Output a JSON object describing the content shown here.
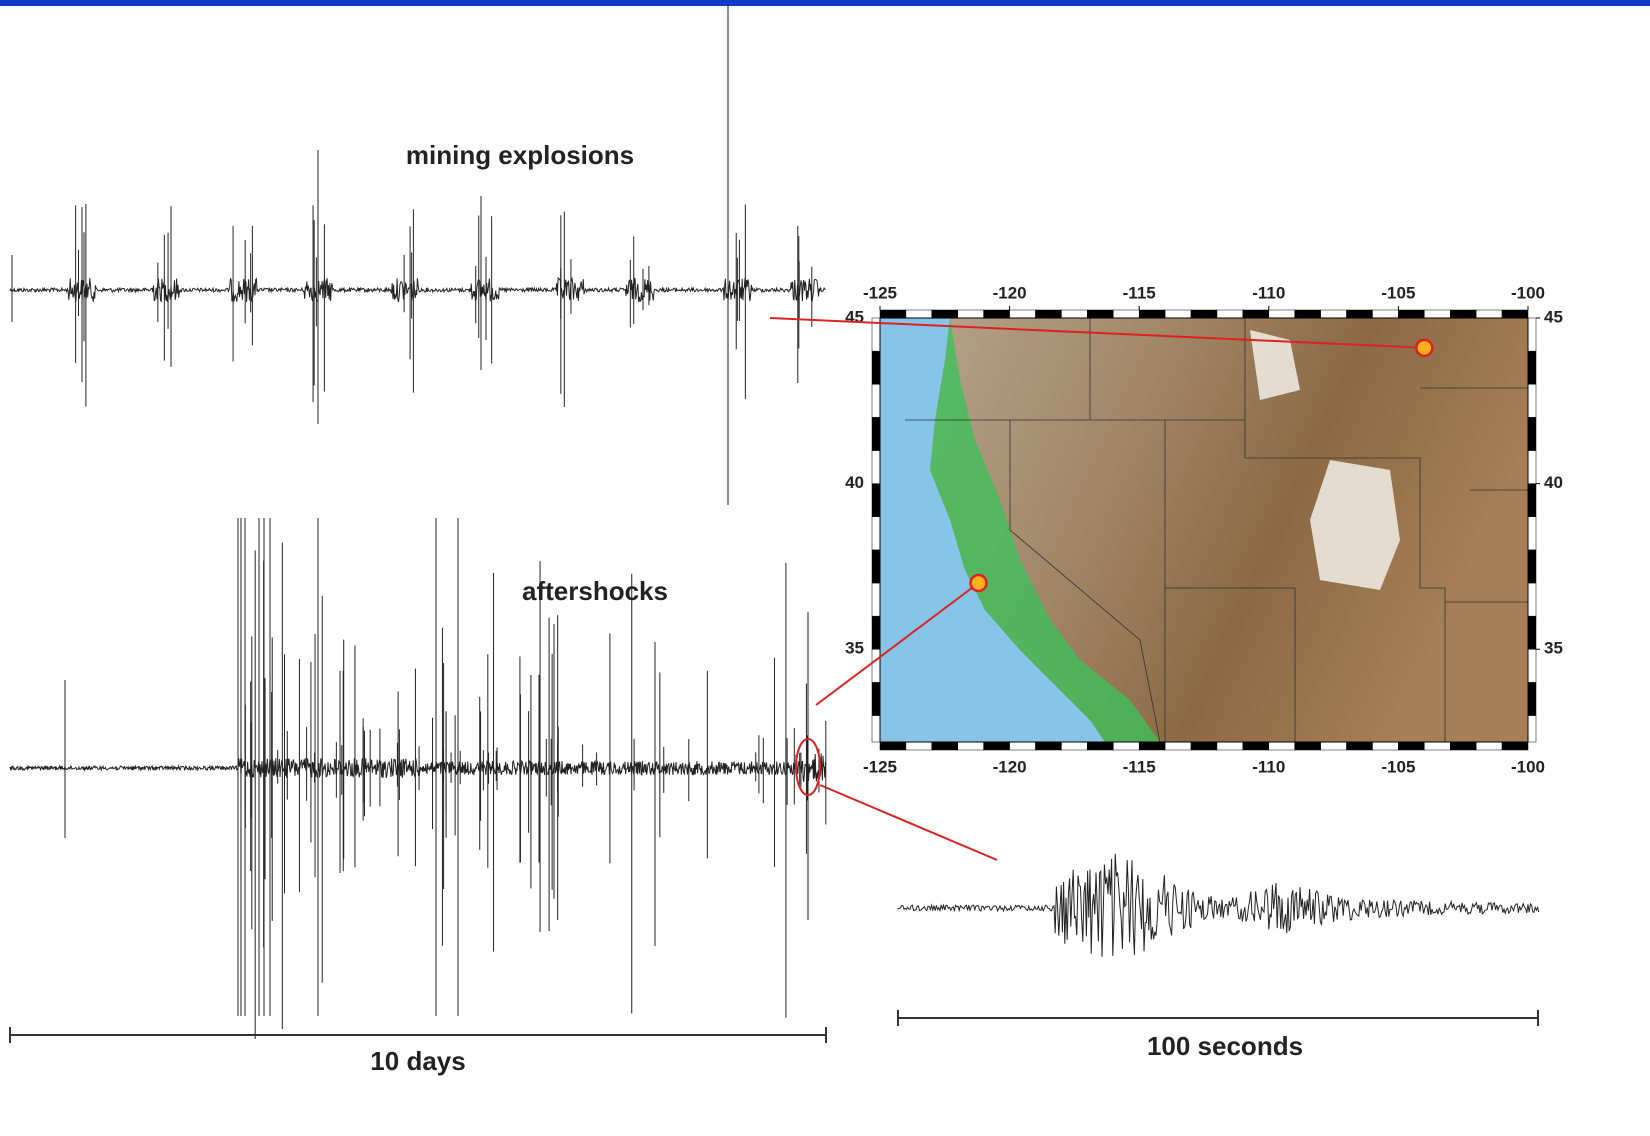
{
  "labels": {
    "mining": "mining explosions",
    "aftershocks": "aftershocks",
    "days": "10 days",
    "seconds": "100 seconds"
  },
  "map": {
    "xlim": [
      -125,
      -100
    ],
    "ylim": [
      32.2,
      45
    ],
    "xticks": [
      -125,
      -120,
      -115,
      -110,
      -105,
      -100
    ],
    "yticks": [
      35,
      40,
      45
    ],
    "events": [
      {
        "lon": -104,
        "lat": 44.1
      },
      {
        "lon": -121.2,
        "lat": 37
      }
    ]
  }
}
